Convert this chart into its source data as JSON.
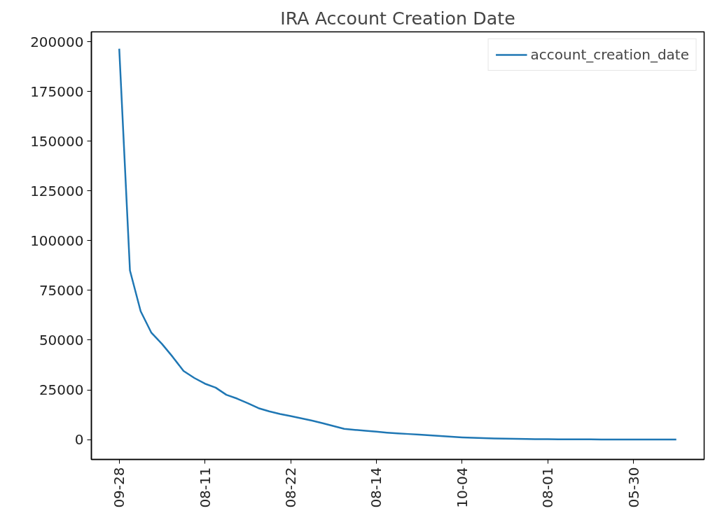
{
  "chart_data": {
    "type": "line",
    "title": "IRA Account Creation Date",
    "categories": [
      "09-28",
      null,
      null,
      null,
      null,
      null,
      null,
      null,
      "08-11",
      null,
      null,
      null,
      null,
      null,
      null,
      null,
      "08-22",
      null,
      null,
      null,
      null,
      null,
      null,
      null,
      "08-14",
      null,
      null,
      null,
      null,
      null,
      null,
      null,
      "10-04",
      null,
      null,
      null,
      null,
      null,
      null,
      null,
      "08-01",
      null,
      null,
      null,
      null,
      null,
      null,
      null,
      "05-30",
      null,
      null,
      null,
      null
    ],
    "series": [
      {
        "name": "account_creation_date",
        "color": "#1f77b4",
        "values": [
          196500,
          85000,
          64500,
          53700,
          48000,
          41500,
          34500,
          31000,
          28100,
          26100,
          22500,
          20600,
          18300,
          15800,
          14200,
          12900,
          11800,
          10700,
          9500,
          8200,
          6800,
          5400,
          4900,
          4400,
          4000,
          3500,
          3100,
          2800,
          2500,
          2100,
          1800,
          1400,
          1100,
          900,
          700,
          600,
          500,
          400,
          300,
          200,
          200,
          100,
          100,
          100,
          100,
          0,
          0,
          0,
          0,
          0,
          0,
          0,
          0
        ]
      }
    ],
    "ylim": [
      -10000,
      205000
    ],
    "yticks": [
      0,
      25000,
      50000,
      75000,
      100000,
      125000,
      150000,
      175000,
      200000
    ],
    "grid": false,
    "legend": "top right",
    "marker": "none",
    "line_style": "solid"
  }
}
